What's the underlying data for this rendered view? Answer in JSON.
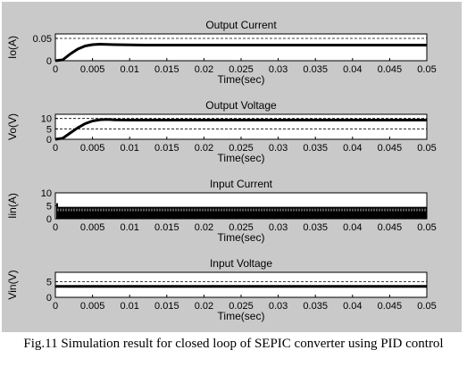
{
  "caption": "Fig.11 Simulation result for closed loop of SEPIC converter using PID control",
  "chart_data": [
    {
      "type": "line",
      "title": "Output Current",
      "xlabel": "Time(sec)",
      "ylabel": "Io(A)",
      "xlim": [
        0,
        0.05
      ],
      "ylim": [
        0,
        0.06
      ],
      "xticks": [
        "0",
        "0.005",
        "0.01",
        "0.015",
        "0.02",
        "0.025",
        "0.03",
        "0.035",
        "0.04",
        "0.045",
        "0.05"
      ],
      "yticks": [
        "0",
        "0.05"
      ],
      "grid_lines_y": [
        0.05
      ],
      "series": [
        {
          "x": [
            0,
            0.001,
            0.002,
            0.003,
            0.004,
            0.005,
            0.006,
            0.008,
            0.012,
            0.02,
            0.03,
            0.04,
            0.05
          ],
          "y": [
            0,
            0.002,
            0.015,
            0.026,
            0.033,
            0.036,
            0.037,
            0.036,
            0.035,
            0.035,
            0.035,
            0.035,
            0.035
          ]
        }
      ]
    },
    {
      "type": "line",
      "title": "Output Voltage",
      "xlabel": "Time(sec)",
      "ylabel": "Vo(V)",
      "xlim": [
        0,
        0.05
      ],
      "ylim": [
        0,
        12
      ],
      "xticks": [
        "0",
        "0.005",
        "0.01",
        "0.015",
        "0.02",
        "0.025",
        "0.03",
        "0.035",
        "0.04",
        "0.045",
        "0.05"
      ],
      "yticks": [
        "0",
        "5",
        "10"
      ],
      "grid_lines_y": [
        5,
        10
      ],
      "series": [
        {
          "x": [
            0,
            0.001,
            0.002,
            0.003,
            0.004,
            0.005,
            0.006,
            0.007,
            0.008,
            0.01,
            0.02,
            0.03,
            0.04,
            0.05
          ],
          "y": [
            0,
            0.5,
            3,
            5.5,
            7.5,
            8.8,
            9.4,
            9.5,
            9.3,
            9.2,
            9.2,
            9.2,
            9.2,
            9.2
          ]
        }
      ]
    },
    {
      "type": "line",
      "title": "Input Current",
      "xlabel": "Time(sec)",
      "ylabel": "Iin(A)",
      "xlim": [
        0,
        0.05
      ],
      "ylim": [
        0,
        10
      ],
      "xticks": [
        "0",
        "0.005",
        "0.01",
        "0.015",
        "0.02",
        "0.025",
        "0.03",
        "0.035",
        "0.04",
        "0.045",
        "0.05"
      ],
      "yticks": [
        "0",
        "5",
        "10"
      ],
      "band": {
        "low": 0,
        "high": 4.6,
        "start_spike": 6
      }
    },
    {
      "type": "line",
      "title": "Input Voltage",
      "xlabel": "Time(sec)",
      "ylabel": "Vin(V)",
      "xlim": [
        0,
        0.05
      ],
      "ylim": [
        0,
        8
      ],
      "xticks": [
        "0",
        "0.005",
        "0.01",
        "0.015",
        "0.02",
        "0.025",
        "0.03",
        "0.035",
        "0.04",
        "0.045",
        "0.05"
      ],
      "yticks": [
        "0",
        "5"
      ],
      "grid_lines_y": [
        5
      ],
      "series": [
        {
          "x": [
            0,
            0.05
          ],
          "y": [
            3.5,
            3.5
          ]
        }
      ]
    }
  ]
}
